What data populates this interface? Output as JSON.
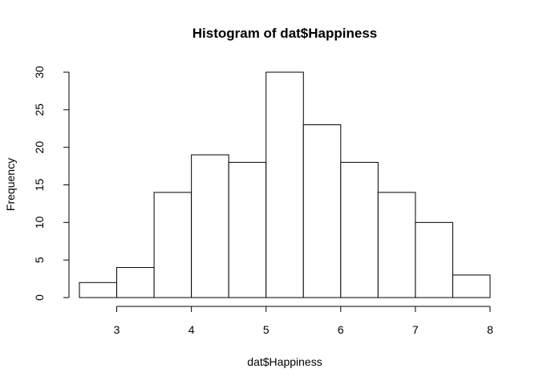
{
  "chart_data": {
    "type": "bar",
    "title": "Histogram of dat$Happiness",
    "xlabel": "dat$Happiness",
    "ylabel": "Frequency",
    "bins": [
      {
        "start": 2.5,
        "end": 3.0,
        "count": 2
      },
      {
        "start": 3.0,
        "end": 3.5,
        "count": 4
      },
      {
        "start": 3.5,
        "end": 4.0,
        "count": 14
      },
      {
        "start": 4.0,
        "end": 4.5,
        "count": 19
      },
      {
        "start": 4.5,
        "end": 5.0,
        "count": 18
      },
      {
        "start": 5.0,
        "end": 5.5,
        "count": 30
      },
      {
        "start": 5.5,
        "end": 6.0,
        "count": 23
      },
      {
        "start": 6.0,
        "end": 6.5,
        "count": 18
      },
      {
        "start": 6.5,
        "end": 7.0,
        "count": 14
      },
      {
        "start": 7.0,
        "end": 7.5,
        "count": 10
      },
      {
        "start": 7.5,
        "end": 8.0,
        "count": 3
      }
    ],
    "xlim": [
      2.5,
      8.0
    ],
    "ylim": [
      0,
      30
    ],
    "xticks": [
      3,
      4,
      5,
      6,
      7,
      8
    ],
    "yticks": [
      0,
      5,
      10,
      15,
      20,
      25,
      30
    ],
    "grid": false,
    "legend": "none"
  }
}
